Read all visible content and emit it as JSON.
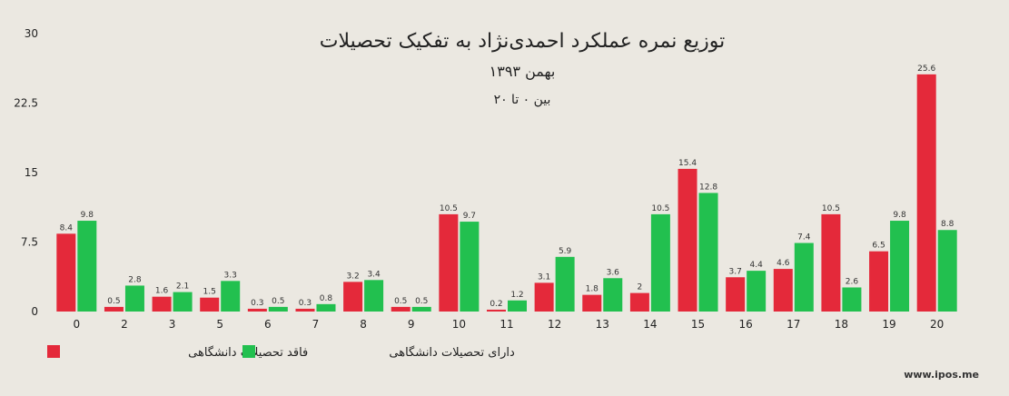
{
  "chart_data": {
    "type": "bar",
    "title": "توزیع نمره عملکرد احمدی‌نژاد به تفکیک تحصیلات",
    "subtitle": "بهمن ۱۳۹۳",
    "subtitle2": "بین ۰ تا ۲۰",
    "categories": [
      "0",
      "2",
      "3",
      "5",
      "6",
      "7",
      "8",
      "9",
      "10",
      "11",
      "12",
      "13",
      "14",
      "15",
      "16",
      "17",
      "18",
      "19",
      "20"
    ],
    "series": [
      {
        "name": "فاقد تحصیلات دانشگاهی",
        "color": "#e4293a",
        "values": [
          8.4,
          0.5,
          1.6,
          1.5,
          0.3,
          0.3,
          3.2,
          0.5,
          10.5,
          0.2,
          3.1,
          1.8,
          2,
          15.4,
          3.7,
          4.6,
          10.5,
          6.5,
          25.6
        ]
      },
      {
        "name": "دارای تحصیلات دانشگاهی",
        "color": "#22c04f",
        "values": [
          9.8,
          2.8,
          2.1,
          3.3,
          0.5,
          0.8,
          3.4,
          0.5,
          9.7,
          1.2,
          5.9,
          3.6,
          10.5,
          12.8,
          4.4,
          7.4,
          2.6,
          9.8,
          8.8
        ]
      }
    ],
    "yticks": [
      "0",
      "7.5",
      "15",
      "22.5",
      "30"
    ],
    "ylim": [
      0,
      30
    ],
    "grid": false,
    "legend": "bottom-left"
  },
  "credit": "www.ipos.me"
}
